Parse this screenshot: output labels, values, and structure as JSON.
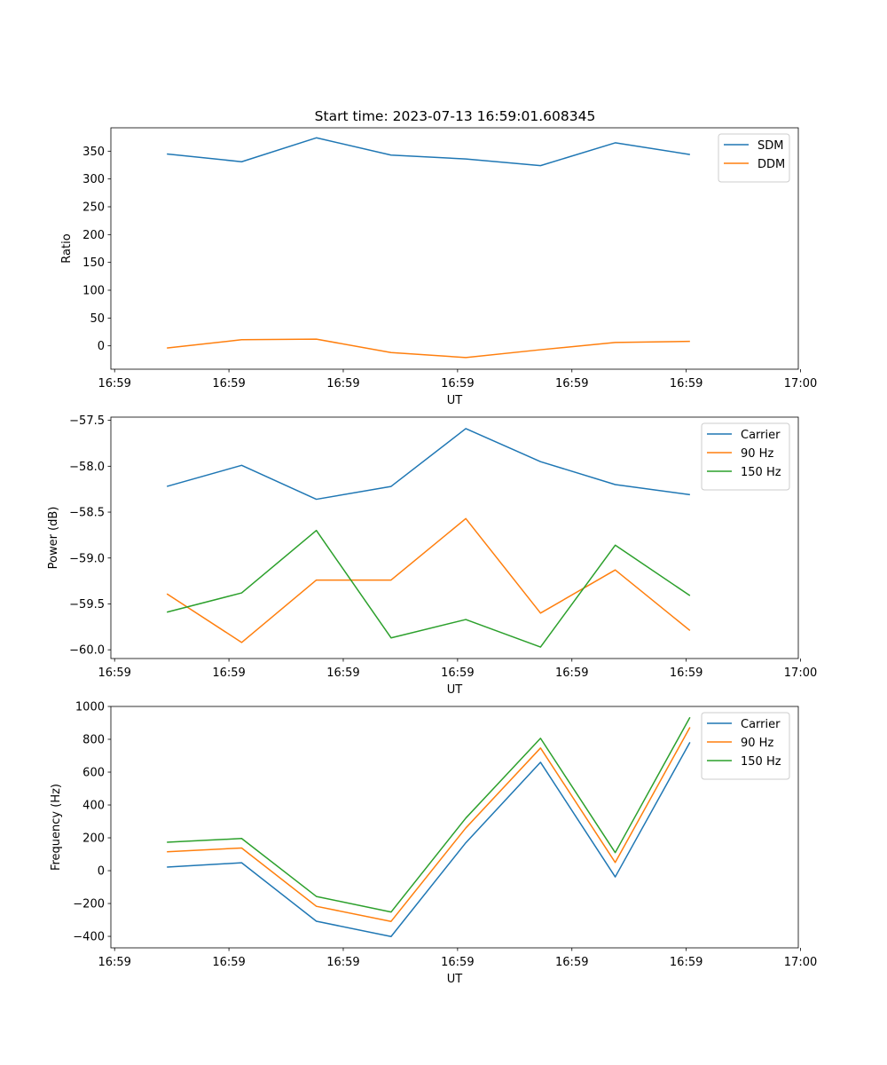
{
  "figure_title": "Start time: 2023-07-13 16:59:01.608345",
  "chart_data": [
    {
      "type": "line",
      "title": "Start time: 2023-07-13 16:59:01.608345",
      "xlabel": "UT",
      "ylabel": "Ratio",
      "x_index": [
        0,
        1,
        2,
        3,
        4,
        5,
        6,
        7
      ],
      "xlim": [
        -0.75,
        8.45
      ],
      "x_tick_positions": [
        -0.7,
        0.83,
        2.36,
        3.89,
        5.42,
        6.95,
        8.48
      ],
      "x_tick_labels": [
        "16:59",
        "16:59",
        "16:59",
        "16:59",
        "16:59",
        "16:59",
        "17:00"
      ],
      "ylim": [
        -42,
        392
      ],
      "y_ticks": [
        0,
        50,
        100,
        150,
        200,
        250,
        300,
        350
      ],
      "y_tick_labels": [
        "0",
        "50",
        "100",
        "150",
        "200",
        "250",
        "300",
        "350"
      ],
      "legend_position": "upper right",
      "series": [
        {
          "name": "SDM",
          "color": "#1f77b4",
          "values": [
            345,
            331,
            374,
            343,
            336,
            324,
            365,
            344
          ]
        },
        {
          "name": "DDM",
          "color": "#ff7f0e",
          "values": [
            -4,
            11,
            12,
            -12,
            -21,
            -7,
            6,
            8
          ]
        }
      ]
    },
    {
      "type": "line",
      "title": "",
      "xlabel": "UT",
      "ylabel": "Power (dB)",
      "x_index": [
        0,
        1,
        2,
        3,
        4,
        5,
        6,
        7
      ],
      "xlim": [
        -0.75,
        8.45
      ],
      "x_tick_positions": [
        -0.7,
        0.83,
        2.36,
        3.89,
        5.42,
        6.95,
        8.48
      ],
      "x_tick_labels": [
        "16:59",
        "16:59",
        "16:59",
        "16:59",
        "16:59",
        "16:59",
        "17:00"
      ],
      "ylim": [
        -60.095,
        -57.465
      ],
      "y_ticks": [
        -60.0,
        -59.5,
        -59.0,
        -58.5,
        -58.0,
        -57.5
      ],
      "y_tick_labels": [
        "−60.0",
        "−59.5",
        "−59.0",
        "−58.5",
        "−58.0",
        "−57.5"
      ],
      "legend_position": "upper right",
      "series": [
        {
          "name": "Carrier",
          "color": "#1f77b4",
          "values": [
            -58.22,
            -57.99,
            -58.36,
            -58.22,
            -57.59,
            -57.95,
            -58.2,
            -58.31
          ]
        },
        {
          "name": "90 Hz",
          "color": "#ff7f0e",
          "values": [
            -59.39,
            -59.92,
            -59.24,
            -59.24,
            -58.57,
            -59.6,
            -59.13,
            -59.79
          ]
        },
        {
          "name": "150 Hz",
          "color": "#2ca02c",
          "values": [
            -59.59,
            -59.38,
            -58.7,
            -59.87,
            -59.67,
            -59.97,
            -58.86,
            -59.41
          ]
        }
      ]
    },
    {
      "type": "line",
      "title": "",
      "xlabel": "UT",
      "ylabel": "Frequency (Hz)",
      "x_index": [
        0,
        1,
        2,
        3,
        4,
        5,
        6,
        7
      ],
      "xlim": [
        -0.75,
        8.45
      ],
      "x_tick_positions": [
        -0.7,
        0.83,
        2.36,
        3.89,
        5.42,
        6.95,
        8.48
      ],
      "x_tick_labels": [
        "16:59",
        "16:59",
        "16:59",
        "16:59",
        "16:59",
        "16:59",
        "17:00"
      ],
      "ylim": [
        -470,
        1000
      ],
      "y_ticks": [
        -400,
        -200,
        0,
        200,
        400,
        600,
        800,
        1000
      ],
      "y_tick_labels": [
        "−400",
        "−200",
        "0",
        "200",
        "400",
        "600",
        "800",
        "1000"
      ],
      "legend_position": "upper right",
      "series": [
        {
          "name": "Carrier",
          "color": "#1f77b4",
          "values": [
            22,
            48,
            -308,
            -401,
            170,
            660,
            -38,
            782
          ]
        },
        {
          "name": "90 Hz",
          "color": "#ff7f0e",
          "values": [
            115,
            138,
            -217,
            -309,
            260,
            747,
            50,
            873
          ]
        },
        {
          "name": "150 Hz",
          "color": "#2ca02c",
          "values": [
            173,
            196,
            -157,
            -252,
            320,
            806,
            110,
            934
          ]
        }
      ]
    }
  ]
}
